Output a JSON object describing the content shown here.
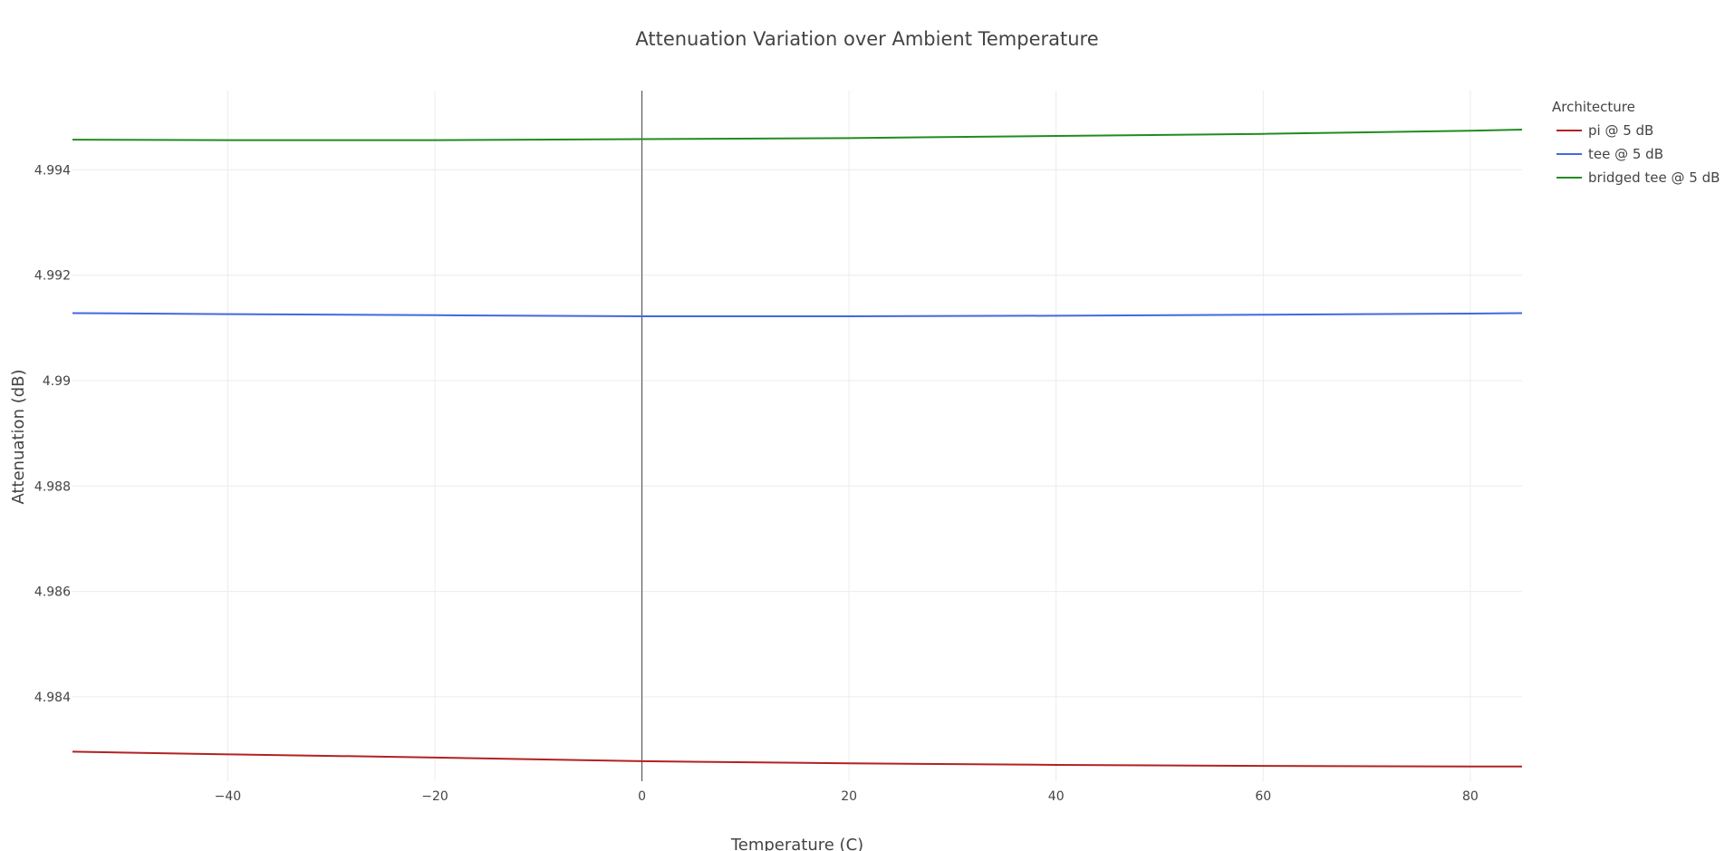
{
  "chart_data": {
    "type": "line",
    "title": "Attenuation Variation over Ambient Temperature",
    "xlabel": "Temperature (C)",
    "ylabel": "Attenuation (dB)",
    "xlim": [
      -55,
      85
    ],
    "ylim": [
      4.9824,
      4.9955
    ],
    "x_ticks": [
      -40,
      -20,
      0,
      20,
      40,
      60,
      80
    ],
    "x_tick_labels": [
      "−40",
      "−20",
      "0",
      "20",
      "40",
      "60",
      "80"
    ],
    "y_ticks": [
      4.984,
      4.986,
      4.988,
      4.99,
      4.992,
      4.994
    ],
    "y_tick_labels": [
      "4.984",
      "4.986",
      "4.988",
      "4.99",
      "4.992",
      "4.994"
    ],
    "grid": true,
    "zero_line_x": 0,
    "legend": {
      "title": "Architecture",
      "placement": "right"
    },
    "x": [
      -55,
      -40,
      -20,
      0,
      20,
      40,
      60,
      80,
      85
    ],
    "series": [
      {
        "name": "pi @ 5 dB",
        "color": "#b22222",
        "values": [
          4.98296,
          4.98291,
          4.98285,
          4.98278,
          4.98274,
          4.98271,
          4.98269,
          4.98268,
          4.98268
        ]
      },
      {
        "name": "tee @ 5 dB",
        "color": "#4169e1",
        "values": [
          4.99128,
          4.99126,
          4.99124,
          4.99122,
          4.99122,
          4.99123,
          4.99125,
          4.99127,
          4.99128
        ]
      },
      {
        "name": "bridged tee @ 5 dB",
        "color": "#228b22",
        "values": [
          4.99457,
          4.99456,
          4.99456,
          4.99458,
          4.9946,
          4.99464,
          4.99468,
          4.99474,
          4.99476
        ]
      }
    ]
  }
}
